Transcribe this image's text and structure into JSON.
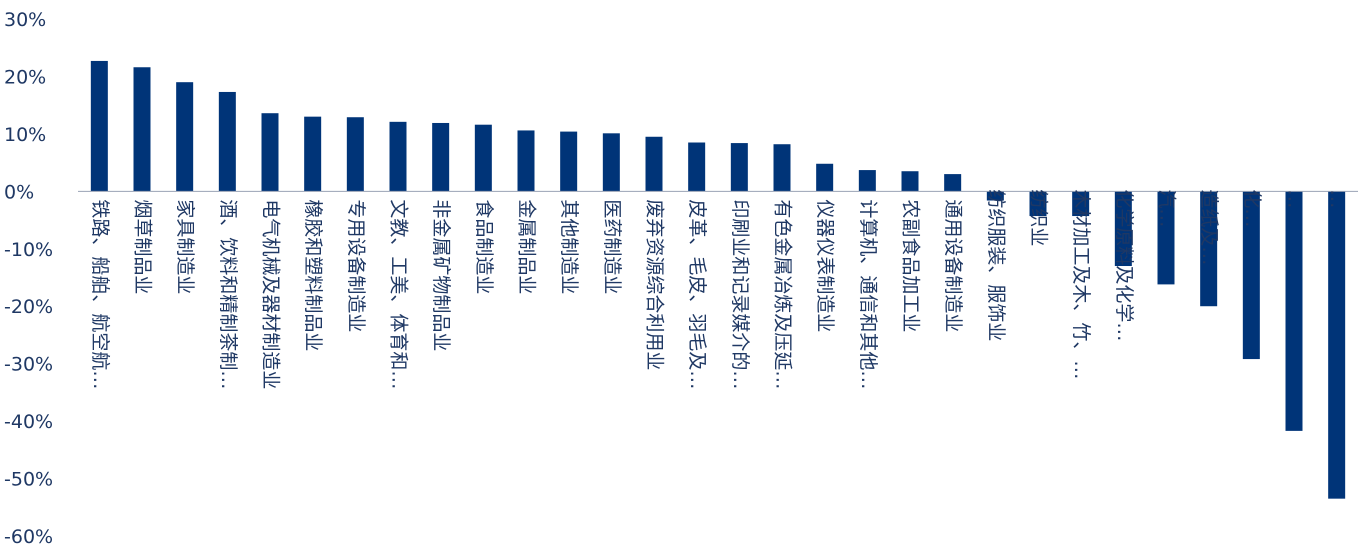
{
  "chart_data": {
    "type": "bar",
    "ylim": [
      -60,
      30
    ],
    "yticks": [
      30,
      20,
      10,
      0,
      -10,
      -20,
      -30,
      -40,
      -50,
      -60
    ],
    "ytick_labels": [
      "30%",
      "20%",
      "10%",
      "0%",
      "-10%",
      "-20%",
      "-30%",
      "-40%",
      "-50%",
      "-60%"
    ],
    "grid": false,
    "bar_color": "#003478",
    "categories": [
      "铁路、船舶、航空航…",
      "烟草制品业",
      "家具制造业",
      "酒、饮料和精制茶制…",
      "电气机械及器材制造业",
      "橡胶和塑料制品业",
      "专用设备制造业",
      "文教、工美、体育和…",
      "非金属矿物制品业",
      "食品制造业",
      "金属制品业",
      "其他制造业",
      "医药制造业",
      "废弃资源综合利用业",
      "皮革、毛皮、羽毛及…",
      "印刷业和记录媒介的…",
      "有色金属冶炼及压延…",
      "仪器仪表制造业",
      "计算机、通信和其他…",
      "农副食品加工业",
      "通用设备制造业",
      "纺织服装、服饰业",
      "纺织业",
      "木材加工及木、竹、…",
      "化学原料及化学…",
      "汽…",
      "造纸及…",
      "化…",
      "…",
      "…"
    ],
    "values": [
      22.7,
      21.6,
      19.0,
      17.3,
      13.6,
      13.0,
      12.9,
      12.1,
      11.9,
      11.6,
      10.6,
      10.4,
      10.1,
      9.5,
      8.5,
      8.4,
      8.2,
      4.8,
      3.7,
      3.5,
      3.0,
      -1.6,
      -4.3,
      -4.3,
      -13.0,
      -16.2,
      -20.0,
      -29.2,
      -41.7,
      -53.5
    ]
  }
}
